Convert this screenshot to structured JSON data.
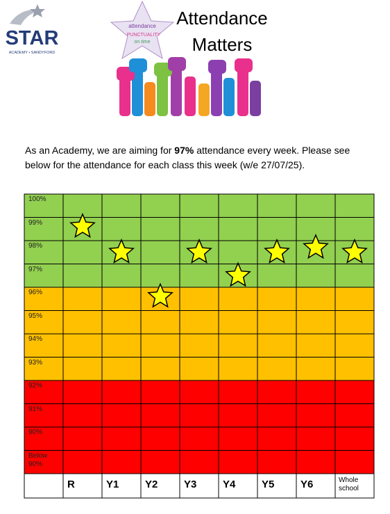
{
  "header": {
    "logo_name": "STAR",
    "logo_tagline": "ACADEMY • SANDYFORD",
    "banner_title_1": "Attendance",
    "banner_title_2": "Matters"
  },
  "intro": {
    "before": "As an Academy, we are aiming for ",
    "bold": "97%",
    "after": " attendance every week. Please see below for the attendance for each class this week (w/e 27/07/25)."
  },
  "chart_data": {
    "type": "scatter",
    "categories": [
      "R",
      "Y1",
      "Y2",
      "Y3",
      "Y4",
      "Y5",
      "Y6",
      "Whole school"
    ],
    "values": [
      99.1,
      98.0,
      96.1,
      98.0,
      97.0,
      98.0,
      98.2,
      98.0
    ],
    "color": "#ffff00",
    "ylim": [
      88.5,
      100.5
    ],
    "yticks": [
      {
        "value": 100,
        "label": "100%"
      },
      {
        "value": 99,
        "label": "99%"
      },
      {
        "value": 98,
        "label": "98%"
      },
      {
        "value": 97,
        "label": "97%"
      },
      {
        "value": 96,
        "label": "96%"
      },
      {
        "value": 95,
        "label": "95%"
      },
      {
        "value": 94,
        "label": "94%"
      },
      {
        "value": 93,
        "label": "93%"
      },
      {
        "value": 92,
        "label": "92%"
      },
      {
        "value": 91,
        "label": "91%"
      },
      {
        "value": 90,
        "label": "90%"
      },
      {
        "value": 89,
        "label": "Below 90%"
      }
    ],
    "band_colors": [
      "#92d050",
      "#92d050",
      "#92d050",
      "#92d050",
      "#ffc000",
      "#ffc000",
      "#ffc000",
      "#ffc000",
      "#ff0000",
      "#ff0000",
      "#ff0000",
      "#ff0000"
    ]
  }
}
